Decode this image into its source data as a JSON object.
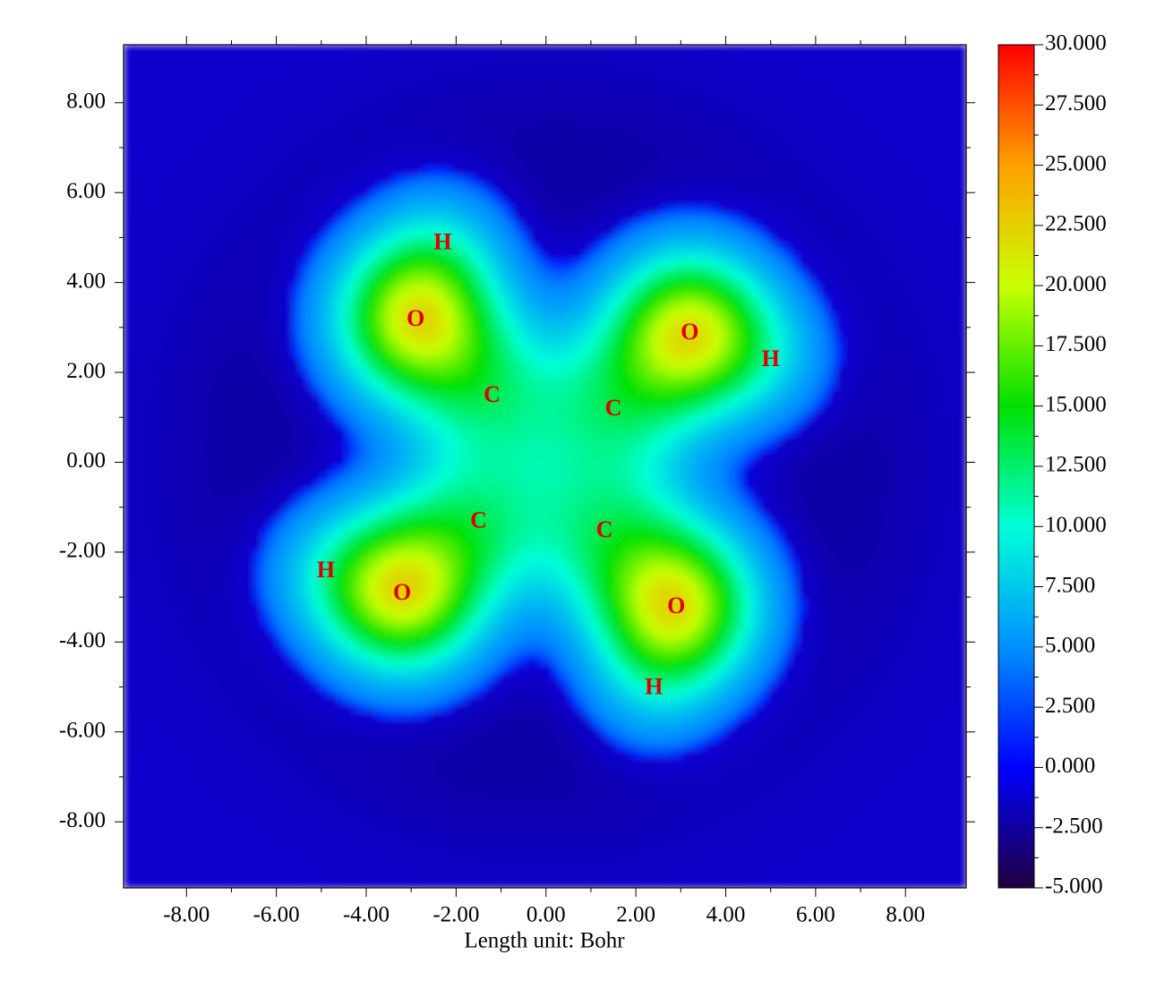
{
  "chart_data": {
    "type": "heatmap",
    "xlabel": "Length unit: Bohr",
    "xlim": [
      -9.4,
      9.35
    ],
    "ylim": [
      -9.47,
      9.29
    ],
    "xticks": [
      {
        "value": -8,
        "label": "-8.00"
      },
      {
        "value": -6,
        "label": "-6.00"
      },
      {
        "value": -4,
        "label": "-4.00"
      },
      {
        "value": -2,
        "label": "-2.00"
      },
      {
        "value": 0,
        "label": "0.00"
      },
      {
        "value": 2,
        "label": "2.00"
      },
      {
        "value": 4,
        "label": "4.00"
      },
      {
        "value": 6,
        "label": "6.00"
      },
      {
        "value": 8,
        "label": "8.00"
      }
    ],
    "yticks": [
      {
        "value": -8,
        "label": "-8.00"
      },
      {
        "value": -6,
        "label": "-6.00"
      },
      {
        "value": -4,
        "label": "-4.00"
      },
      {
        "value": -2,
        "label": "-2.00"
      },
      {
        "value": 0,
        "label": "0.00"
      },
      {
        "value": 2,
        "label": "2.00"
      },
      {
        "value": 4,
        "label": "4.00"
      },
      {
        "value": 6,
        "label": "6.00"
      },
      {
        "value": 8,
        "label": "8.00"
      }
    ],
    "colorbar": {
      "lim": [
        -5,
        30
      ],
      "colors": [
        "#200040",
        "#0000ff",
        "#0090ff",
        "#00ffd8",
        "#00e000",
        "#c8ff00",
        "#ffa000",
        "#ff0000"
      ],
      "ticks": [
        {
          "value": 30,
          "label": "30.000"
        },
        {
          "value": 27.5,
          "label": "27.500"
        },
        {
          "value": 25,
          "label": "25.000"
        },
        {
          "value": 22.5,
          "label": "22.500"
        },
        {
          "value": 20,
          "label": "20.000"
        },
        {
          "value": 17.5,
          "label": "17.500"
        },
        {
          "value": 15,
          "label": "15.000"
        },
        {
          "value": 12.5,
          "label": "12.500"
        },
        {
          "value": 10,
          "label": "10.000"
        },
        {
          "value": 7.5,
          "label": "7.500"
        },
        {
          "value": 5,
          "label": "5.000"
        },
        {
          "value": 2.5,
          "label": "2.500"
        },
        {
          "value": 0,
          "label": "0.000"
        },
        {
          "value": -2.5,
          "label": "-2.500"
        },
        {
          "value": -5,
          "label": "-5.000"
        }
      ]
    },
    "atoms": [
      {
        "label": "O",
        "x": -2.9,
        "y": 3.2
      },
      {
        "label": "O",
        "x": 3.2,
        "y": 2.9
      },
      {
        "label": "O",
        "x": -3.2,
        "y": -2.9
      },
      {
        "label": "O",
        "x": 2.9,
        "y": -3.2
      },
      {
        "label": "C",
        "x": -1.2,
        "y": 1.5
      },
      {
        "label": "C",
        "x": 1.5,
        "y": 1.2
      },
      {
        "label": "C",
        "x": -1.5,
        "y": -1.3
      },
      {
        "label": "C",
        "x": 1.3,
        "y": -1.5
      },
      {
        "label": "H",
        "x": -2.3,
        "y": 4.9
      },
      {
        "label": "H",
        "x": 5.0,
        "y": 2.3
      },
      {
        "label": "H",
        "x": -4.9,
        "y": -2.4
      },
      {
        "label": "H",
        "x": 2.4,
        "y": -5.0
      }
    ]
  }
}
